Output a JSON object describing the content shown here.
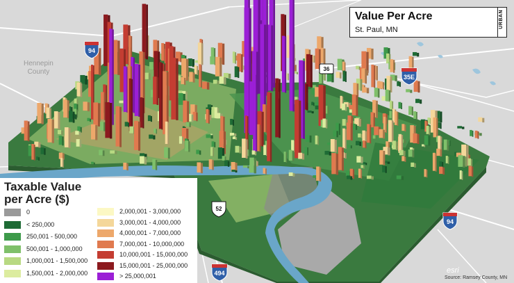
{
  "title": {
    "main": "Value Per Acre",
    "subtitle": "St. Paul, MN",
    "brand": "URBAN"
  },
  "legend": {
    "title_line1": "Taxable Value",
    "title_line2": "per Acre ($)",
    "items": [
      {
        "label": "0",
        "color": "#9a9a9a"
      },
      {
        "label": "< 250,000",
        "color": "#1e6b35"
      },
      {
        "label": "250,001 - 500,000",
        "color": "#3d9a4a"
      },
      {
        "label": "500,001 - 1,000,000",
        "color": "#7fc06a"
      },
      {
        "label": "1,000,001 - 1,500,000",
        "color": "#b8d982"
      },
      {
        "label": "1,500,001 - 2,000,000",
        "color": "#dcec9f"
      },
      {
        "label": "2,000,001 - 3,000,000",
        "color": "#fcf8c4"
      },
      {
        "label": "3,000,001 - 4,000,000",
        "color": "#f4d79a"
      },
      {
        "label": "4,000,001 - 7,000,000",
        "color": "#eda86b"
      },
      {
        "label": "7,000,001 - 10,000,000",
        "color": "#e07a4f"
      },
      {
        "label": "10,000,001 - 15,000,000",
        "color": "#c43d32"
      },
      {
        "label": "15,000,001 - 25,000,000",
        "color": "#8c1a1f"
      },
      {
        "label": "> 25,000,001",
        "color": "#9b1fd6"
      }
    ]
  },
  "map": {
    "county_label_line1": "Hennepin",
    "county_label_line2": "County",
    "shields": {
      "i94_top": "94",
      "us36": "36",
      "i35e": "35E",
      "us52": "52",
      "i94_right": "94",
      "i494": "494"
    },
    "water_color": "#6aa6c9",
    "land_color": "#d9d9d9"
  },
  "attribution": {
    "esri": "esri",
    "source": "Source: Ramsey County, MN"
  }
}
